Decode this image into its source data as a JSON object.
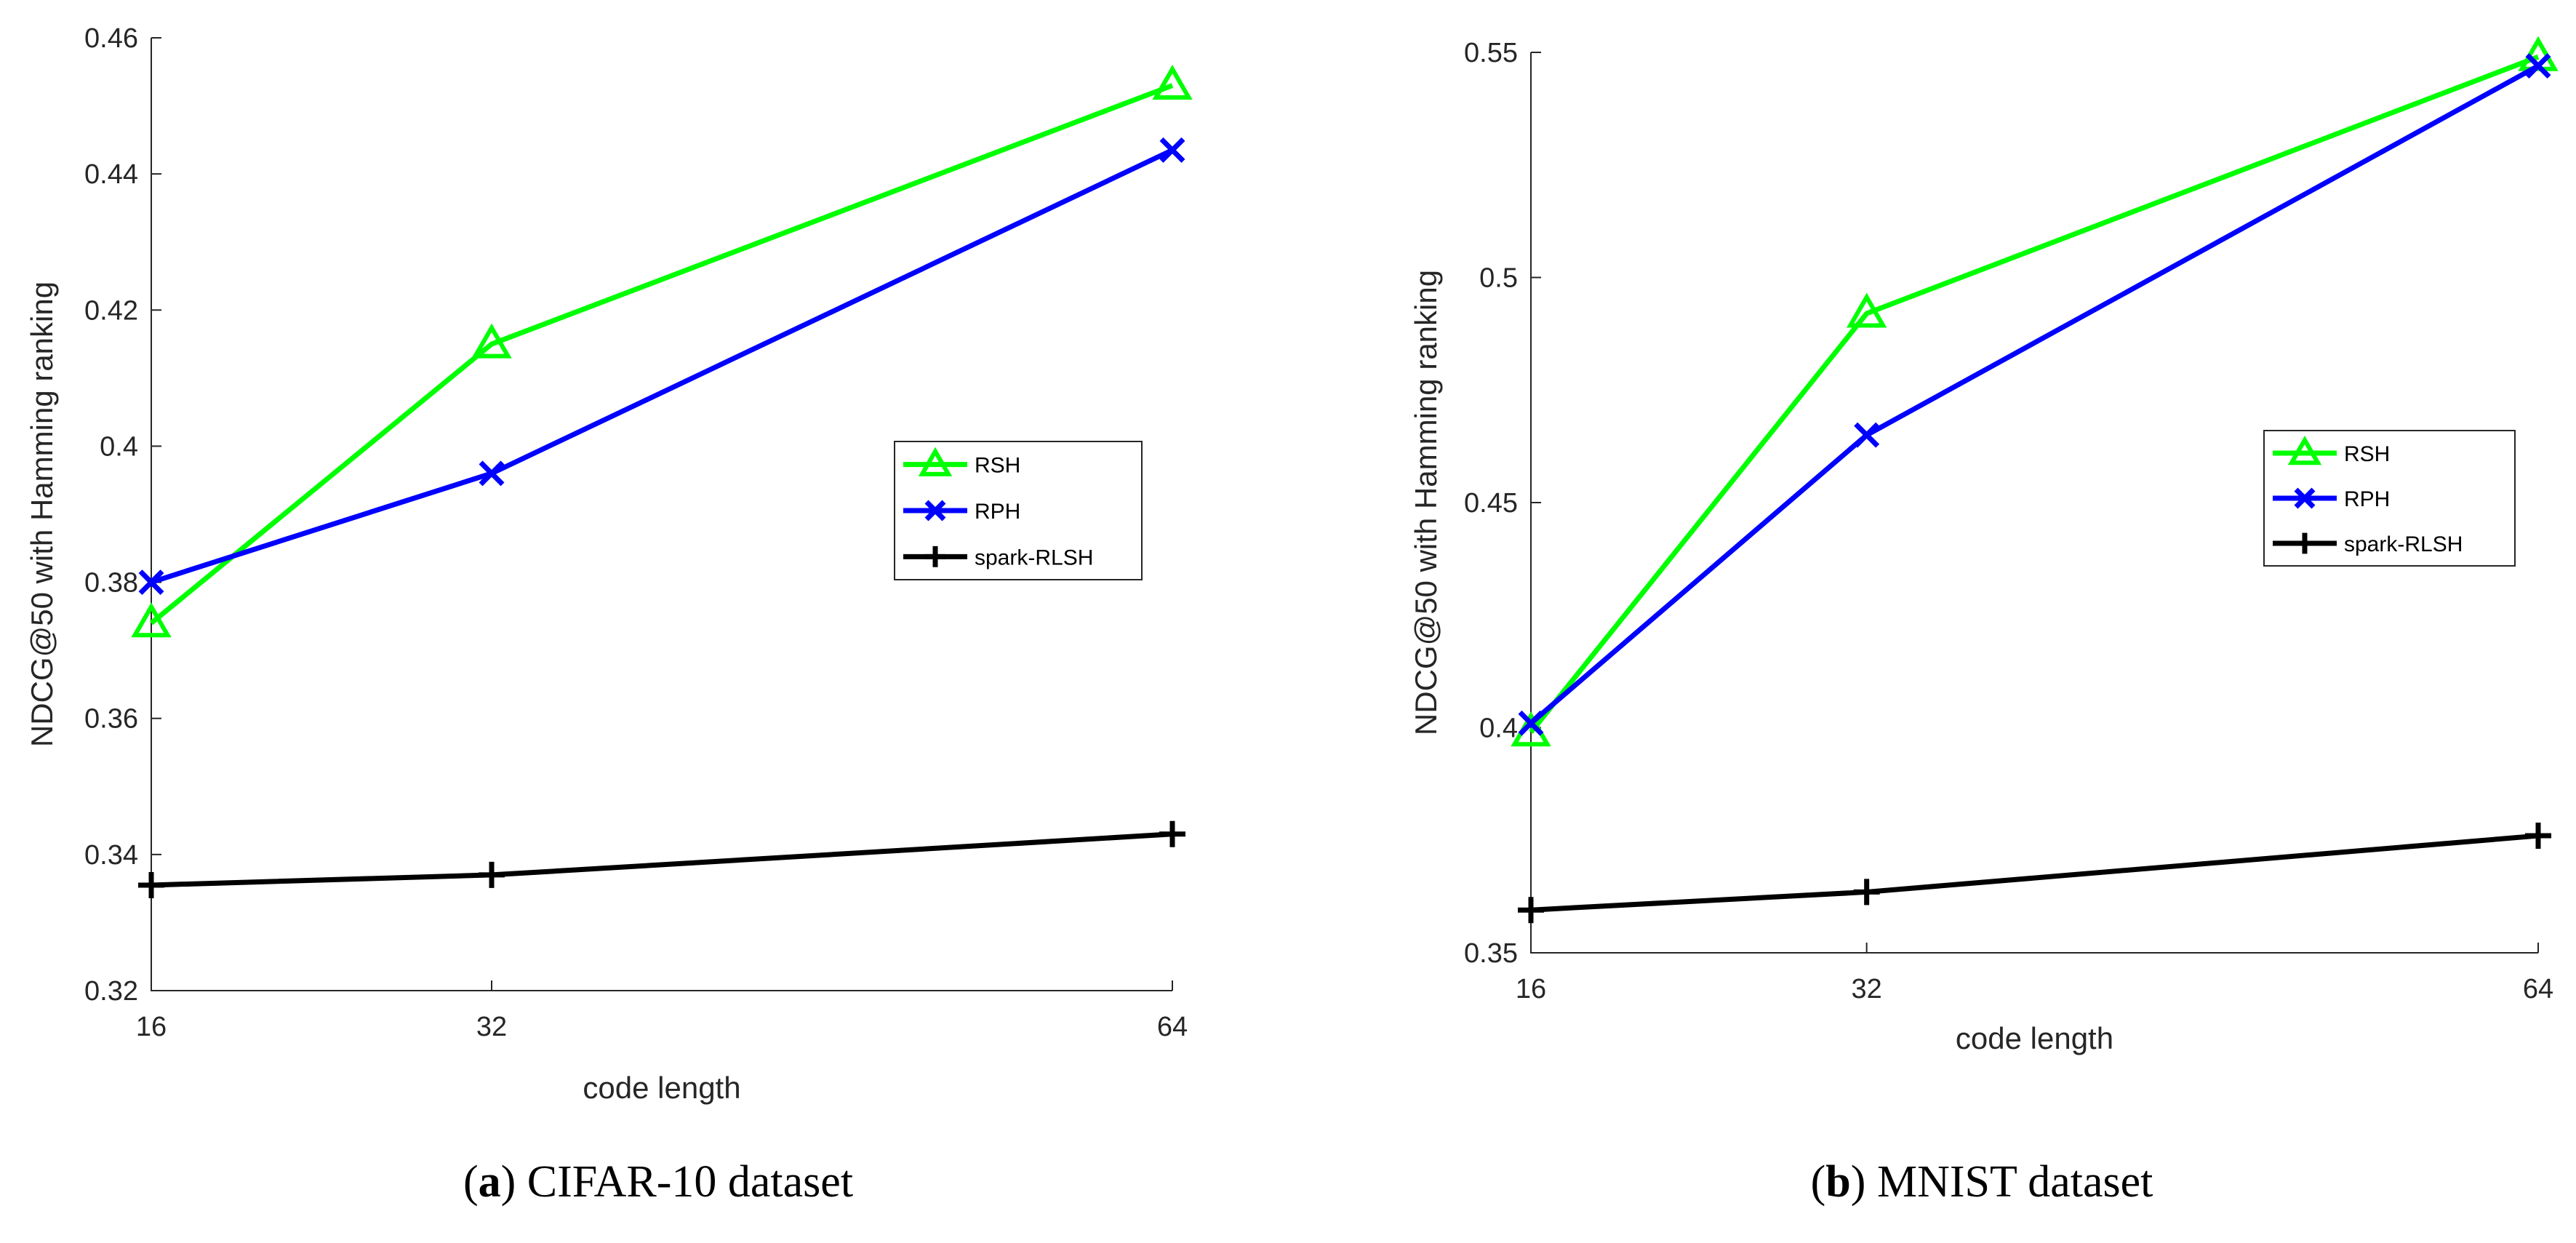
{
  "chart_data": [
    {
      "type": "line",
      "id": "a",
      "caption": {
        "letter": "a",
        "text": " CIFAR-10 dataset",
        "open": "(",
        "close": ")"
      },
      "xlabel": "code length",
      "ylabel": "NDCG@50 with Hamming ranking",
      "x": [
        16,
        32,
        64
      ],
      "xticks": [
        "16",
        "32",
        "64"
      ],
      "ylim": [
        0.32,
        0.46
      ],
      "yticks": [
        0.32,
        0.34,
        0.36,
        0.38,
        0.4,
        0.42,
        0.44,
        0.46
      ],
      "ytick_labels": [
        "0.32",
        "0.34",
        "0.36",
        "0.38",
        "0.4",
        "0.42",
        "0.44",
        "0.46"
      ],
      "grid": false,
      "legend_position": "center-right",
      "series": [
        {
          "name": "RSH",
          "color": "#00ff00",
          "marker": "triangle",
          "values": [
            0.374,
            0.415,
            0.453
          ]
        },
        {
          "name": "RPH",
          "color": "#0000ff",
          "marker": "x",
          "values": [
            0.38,
            0.396,
            0.4435
          ]
        },
        {
          "name": "spark-RLSH",
          "color": "#000000",
          "marker": "plus",
          "values": [
            0.3355,
            0.337,
            0.343
          ]
        }
      ]
    },
    {
      "type": "line",
      "id": "b",
      "caption": {
        "letter": "b",
        "text": " MNIST dataset",
        "open": "(",
        "close": ")"
      },
      "xlabel": "code length",
      "ylabel": "NDCG@50 with Hamming ranking",
      "x": [
        16,
        32,
        64
      ],
      "xticks": [
        "16",
        "32",
        "64"
      ],
      "ylim": [
        0.35,
        0.55
      ],
      "yticks": [
        0.35,
        0.4,
        0.45,
        0.5,
        0.55
      ],
      "ytick_labels": [
        "0.35",
        "0.4",
        "0.45",
        "0.5",
        "0.55"
      ],
      "grid": false,
      "legend_position": "center-right",
      "series": [
        {
          "name": "RSH",
          "color": "#00ff00",
          "marker": "triangle",
          "values": [
            0.399,
            0.492,
            0.549
          ]
        },
        {
          "name": "RPH",
          "color": "#0000ff",
          "marker": "x",
          "values": [
            0.401,
            0.465,
            0.547
          ]
        },
        {
          "name": "spark-RLSH",
          "color": "#000000",
          "marker": "plus",
          "values": [
            0.3595,
            0.3635,
            0.376
          ]
        }
      ]
    }
  ]
}
